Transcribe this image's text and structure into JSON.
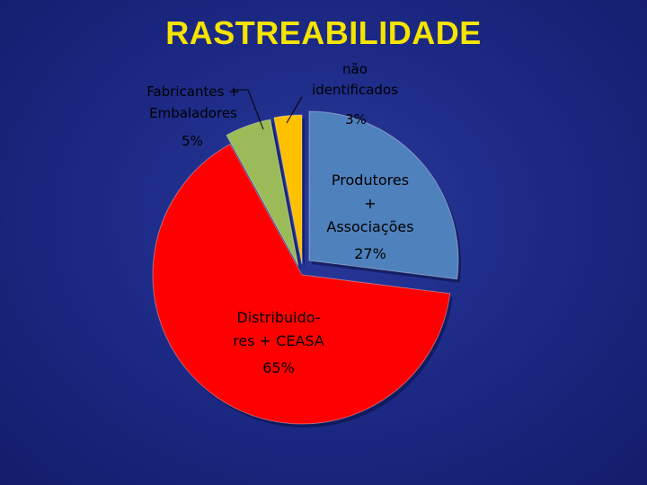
{
  "title": "RASTREABILIDADE",
  "colors": {
    "background": "#1d2a86",
    "title": "#f5e400"
  },
  "chart_data": {
    "type": "pie",
    "title": "RASTREABILIDADE",
    "exploded": true,
    "slices": [
      {
        "label_lines": [
          "Produtores",
          "+",
          "Associações"
        ],
        "value": 27,
        "value_label": "27%",
        "color": "#4f81bd"
      },
      {
        "label_lines": [
          "Distribuido-",
          "res + CEASA"
        ],
        "value": 65,
        "value_label": "65%",
        "color": "#ff0000"
      },
      {
        "label_lines": [
          "Fabricantes +",
          "Embaladores"
        ],
        "value": 5,
        "value_label": "5%",
        "color": "#9bbb59"
      },
      {
        "label_lines": [
          "não",
          "identificados"
        ],
        "value": 3,
        "value_label": "3%",
        "color": "#ffc000"
      }
    ]
  }
}
